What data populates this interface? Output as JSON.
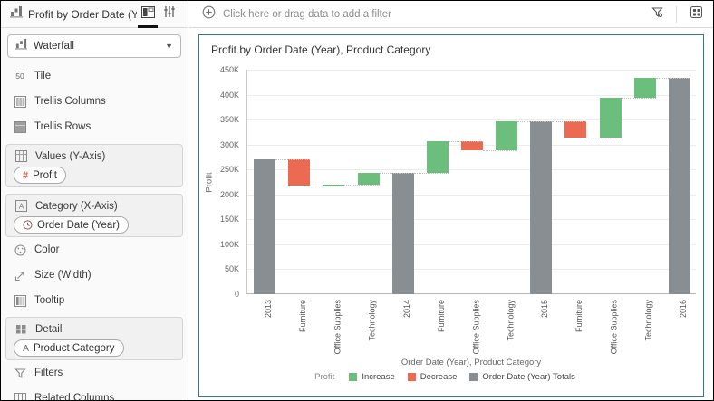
{
  "sidebar": {
    "title": "Profit by Order Date (Year), Pr...",
    "viz_type": "Waterfall",
    "rows": {
      "tile": "Tile",
      "trellis_columns": "Trellis Columns",
      "trellis_rows": "Trellis Rows",
      "color": "Color",
      "size": "Size (Width)",
      "tooltip": "Tooltip",
      "filters": "Filters",
      "related_columns": "Related Columns"
    },
    "sections": {
      "values": {
        "label": "Values (Y-Axis)",
        "chip": "Profit"
      },
      "category": {
        "label": "Category (X-Axis)",
        "chip": "Order Date (Year)"
      },
      "detail": {
        "label": "Detail",
        "chip": "Product Category"
      }
    },
    "tile_icon_text": "50"
  },
  "filter_bar": {
    "placeholder": "Click here or drag data to add a filter"
  },
  "chart_data": {
    "type": "waterfall",
    "title": "Profit by Order Date (Year), Product Category",
    "xlabel": "Order Date (Year), Product Category",
    "ylabel": "Profit",
    "ylim": [
      0,
      450000
    ],
    "ytick_step": 50000,
    "grid": true,
    "colors": {
      "increase": "#6CBE7C",
      "decrease": "#EC6A52",
      "total": "#898E92"
    },
    "bars": [
      {
        "category": "2013",
        "kind": "total",
        "start": 0,
        "end": 270000
      },
      {
        "category": "Furniture",
        "kind": "decrease",
        "start": 270000,
        "end": 217000
      },
      {
        "category": "Office Supplies",
        "kind": "increase",
        "start": 217000,
        "end": 219000
      },
      {
        "category": "Technology",
        "kind": "increase",
        "start": 219000,
        "end": 243000
      },
      {
        "category": "2014",
        "kind": "total",
        "start": 0,
        "end": 243000
      },
      {
        "category": "Furniture",
        "kind": "increase",
        "start": 243000,
        "end": 307000
      },
      {
        "category": "Office Supplies",
        "kind": "decrease",
        "start": 307000,
        "end": 289000
      },
      {
        "category": "Technology",
        "kind": "increase",
        "start": 289000,
        "end": 347000
      },
      {
        "category": "2015",
        "kind": "total",
        "start": 0,
        "end": 347000
      },
      {
        "category": "Furniture",
        "kind": "decrease",
        "start": 347000,
        "end": 314000
      },
      {
        "category": "Office Supplies",
        "kind": "increase",
        "start": 314000,
        "end": 394000
      },
      {
        "category": "Technology",
        "kind": "increase",
        "start": 394000,
        "end": 434000
      },
      {
        "category": "2016",
        "kind": "total",
        "start": 0,
        "end": 434000
      }
    ],
    "legend": {
      "title": "Profit",
      "items": [
        {
          "label": "Increase",
          "kind": "increase"
        },
        {
          "label": "Decrease",
          "kind": "decrease"
        },
        {
          "label": "Order Date (Year) Totals",
          "kind": "total"
        }
      ],
      "position": "bottom-center"
    }
  }
}
